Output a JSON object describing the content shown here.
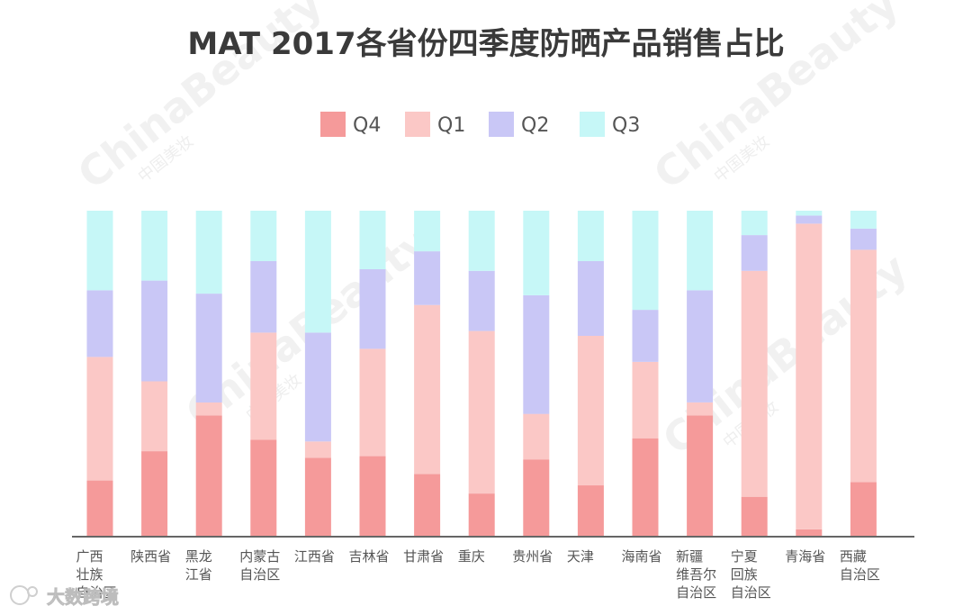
{
  "chart_data": {
    "type": "bar",
    "stacked": true,
    "normalized": true,
    "title": "MAT 2017各省份四季度防晒产品销售占比",
    "xlabel": "",
    "ylabel": "",
    "ylim": [
      0,
      100
    ],
    "grid": false,
    "legend_position": "top-center",
    "categories": [
      "广西壮族自治区",
      "陕西省",
      "黑龙江省",
      "内蒙古自治区",
      "江西省",
      "吉林省",
      "甘肃省",
      "重庆",
      "贵州省",
      "天津",
      "海南省",
      "新疆维吾尔自治区",
      "宁夏回族自治区",
      "青海省",
      "西藏自治区"
    ],
    "category_label_lines": [
      [
        "广西",
        "壮族",
        "自治区"
      ],
      [
        "陕西省"
      ],
      [
        "黑龙",
        "江省"
      ],
      [
        "内蒙古",
        "自治区"
      ],
      [
        "江西省"
      ],
      [
        "吉林省"
      ],
      [
        "甘肃省"
      ],
      [
        "重庆"
      ],
      [
        "贵州省"
      ],
      [
        "天津"
      ],
      [
        "海南省"
      ],
      [
        "新疆",
        "维吾尔",
        "自治区"
      ],
      [
        "宁夏",
        "回族",
        "自治区"
      ],
      [
        "青海省"
      ],
      [
        "西藏",
        "自治区"
      ]
    ],
    "series": [
      {
        "name": "Q4",
        "color": "#f59a9a",
        "values": [
          17,
          26,
          37,
          29.5,
          24,
          24.5,
          19,
          13,
          23.5,
          15.5,
          30,
          37,
          12,
          2,
          16.5
        ]
      },
      {
        "name": "Q1",
        "color": "#fbc8c6",
        "values": [
          38,
          21.5,
          4,
          33,
          5,
          33,
          52,
          50,
          14,
          46,
          23.5,
          4,
          69.5,
          94,
          71.5
        ]
      },
      {
        "name": "Q2",
        "color": "#c9c7f6",
        "values": [
          20.5,
          31,
          33.5,
          22,
          33.5,
          24.5,
          16.5,
          18.5,
          36.5,
          23,
          16,
          34.5,
          11,
          2.5,
          6.5
        ]
      },
      {
        "name": "Q3",
        "color": "#c6f7f7",
        "values": [
          24.5,
          21.5,
          25.5,
          15.5,
          37.5,
          18,
          12.5,
          18.5,
          26,
          15.5,
          30.5,
          24.5,
          7.5,
          1.5,
          5.5
        ]
      }
    ],
    "legend_order": [
      "Q4",
      "Q1",
      "Q2",
      "Q3"
    ]
  },
  "colors": {
    "axis": "#333333",
    "title": "#3a3a3a",
    "text": "#555555"
  },
  "watermark": {
    "brand": "ChinaBeauty",
    "sub": "中国美妆"
  },
  "footer": {
    "text": "大数跨境"
  }
}
